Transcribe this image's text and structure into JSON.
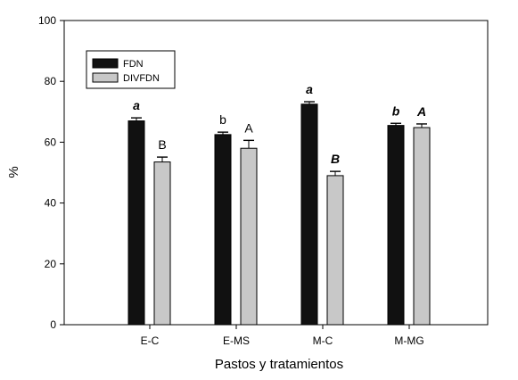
{
  "chart_data": {
    "type": "bar",
    "xlabel": "Pastos y tratamientos",
    "ylabel": "%",
    "ylim": [
      0,
      100
    ],
    "yticks": [
      0,
      20,
      40,
      60,
      80,
      100
    ],
    "categories": [
      "E-C",
      "E-MS",
      "M-C",
      "M-MG"
    ],
    "series": [
      {
        "name": "FDN",
        "color": "#111111",
        "values": [
          67,
          62.5,
          72.5,
          65.5
        ],
        "errors": [
          1.0,
          0.8,
          0.8,
          0.7
        ],
        "labels": [
          "a",
          "b",
          "a",
          "b"
        ],
        "label_style": [
          "italic-bold",
          "normal",
          "italic-bold",
          "italic-bold"
        ]
      },
      {
        "name": "DIVFDN",
        "color": "#c8c8c8",
        "values": [
          53.5,
          58.0,
          49.0,
          64.8
        ],
        "errors": [
          1.6,
          2.6,
          1.4,
          1.2
        ],
        "labels": [
          "B",
          "A",
          "B",
          "A"
        ],
        "label_style": [
          "normal",
          "normal",
          "italic-bold",
          "italic-bold"
        ]
      }
    ],
    "legend_position": "top-left"
  }
}
